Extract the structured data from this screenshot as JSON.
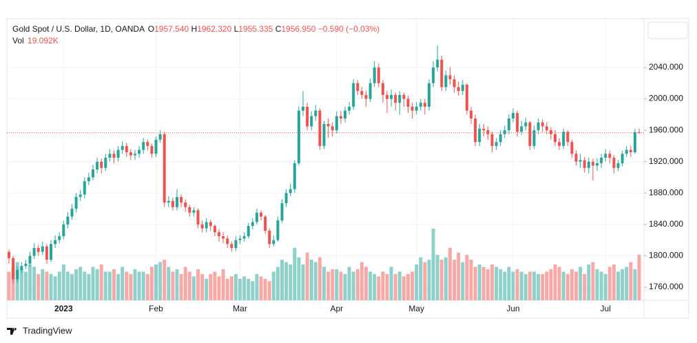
{
  "chart_data": {
    "type": "candlestick",
    "legend": {
      "symbol": "Gold Spot / U.S. Dollar, 1D, OANDA",
      "open_key": "O",
      "open": {
        "value": 1957.54,
        "label": "1957.540"
      },
      "high_key": "H",
      "high": {
        "value": 1962.32,
        "label": "1962.320"
      },
      "low_key": "L",
      "low": {
        "value": 1955.335,
        "label": "1955.335"
      },
      "close_key": "C",
      "close": {
        "value": 1956.95,
        "label": "1956.950"
      },
      "change": "−0.590 (−0.03%)",
      "volume_key": "Vol",
      "volume": {
        "value": 19.092,
        "label": "19.092K"
      }
    },
    "categories": [
      null,
      null,
      null,
      null,
      null,
      null,
      null,
      null,
      null,
      null,
      null,
      null,
      null,
      "2023",
      null,
      null,
      null,
      null,
      null,
      null,
      null,
      null,
      null,
      null,
      null,
      null,
      null,
      null,
      null,
      null,
      null,
      null,
      null,
      null,
      null,
      "Feb",
      null,
      null,
      null,
      null,
      null,
      null,
      null,
      null,
      null,
      null,
      null,
      null,
      null,
      null,
      null,
      null,
      null,
      null,
      null,
      "Mar",
      null,
      null,
      null,
      null,
      null,
      null,
      null,
      null,
      null,
      null,
      null,
      null,
      null,
      null,
      null,
      null,
      null,
      null,
      null,
      null,
      null,
      null,
      "Apr",
      null,
      null,
      null,
      null,
      null,
      null,
      null,
      null,
      null,
      null,
      null,
      null,
      null,
      null,
      null,
      null,
      null,
      null,
      "May",
      null,
      null,
      null,
      null,
      null,
      null,
      null,
      null,
      null,
      null,
      null,
      null,
      null,
      null,
      null,
      null,
      null,
      null,
      null,
      null,
      null,
      null,
      "Jun",
      null,
      null,
      null,
      null,
      null,
      null,
      null,
      null,
      null,
      null,
      null,
      null,
      null,
      null,
      null,
      null,
      null,
      null,
      null,
      null,
      null,
      "Jul",
      null,
      null,
      null,
      null,
      null,
      null,
      null,
      null
    ],
    "candles": [
      [
        1805,
        1808,
        1790,
        1797
      ],
      [
        1797,
        1800,
        1765,
        1770
      ],
      [
        1770,
        1786,
        1766,
        1782
      ],
      [
        1782,
        1792,
        1778,
        1787
      ],
      [
        1787,
        1795,
        1783,
        1790
      ],
      [
        1790,
        1805,
        1786,
        1800
      ],
      [
        1800,
        1816,
        1796,
        1810
      ],
      [
        1810,
        1814,
        1800,
        1805
      ],
      [
        1805,
        1818,
        1801,
        1812
      ],
      [
        1812,
        1815,
        1790,
        1795
      ],
      [
        1795,
        1820,
        1792,
        1815
      ],
      [
        1815,
        1826,
        1810,
        1820
      ],
      [
        1820,
        1830,
        1816,
        1825
      ],
      [
        1825,
        1845,
        1821,
        1840
      ],
      [
        1840,
        1856,
        1835,
        1850
      ],
      [
        1850,
        1866,
        1846,
        1860
      ],
      [
        1860,
        1880,
        1855,
        1875
      ],
      [
        1875,
        1884,
        1870,
        1878
      ],
      [
        1878,
        1900,
        1873,
        1895
      ],
      [
        1895,
        1906,
        1890,
        1900
      ],
      [
        1900,
        1916,
        1896,
        1910
      ],
      [
        1910,
        1925,
        1905,
        1920
      ],
      [
        1920,
        1924,
        1905,
        1912
      ],
      [
        1912,
        1930,
        1908,
        1925
      ],
      [
        1925,
        1936,
        1920,
        1930
      ],
      [
        1930,
        1934,
        1918,
        1925
      ],
      [
        1925,
        1940,
        1920,
        1935
      ],
      [
        1935,
        1946,
        1930,
        1940
      ],
      [
        1940,
        1944,
        1926,
        1932
      ],
      [
        1932,
        1936,
        1922,
        1928
      ],
      [
        1928,
        1935,
        1922,
        1930
      ],
      [
        1930,
        1940,
        1925,
        1935
      ],
      [
        1935,
        1950,
        1930,
        1945
      ],
      [
        1945,
        1948,
        1934,
        1940
      ],
      [
        1940,
        1943,
        1925,
        1930
      ],
      [
        1930,
        1952,
        1926,
        1948
      ],
      [
        1948,
        1960,
        1944,
        1955
      ],
      [
        1955,
        1958,
        1862,
        1868
      ],
      [
        1868,
        1876,
        1862,
        1870
      ],
      [
        1870,
        1874,
        1858,
        1862
      ],
      [
        1862,
        1885,
        1858,
        1875
      ],
      [
        1875,
        1878,
        1862,
        1868
      ],
      [
        1868,
        1872,
        1856,
        1862
      ],
      [
        1862,
        1865,
        1850,
        1855
      ],
      [
        1855,
        1862,
        1850,
        1858
      ],
      [
        1858,
        1860,
        1835,
        1840
      ],
      [
        1840,
        1845,
        1830,
        1835
      ],
      [
        1835,
        1848,
        1830,
        1843
      ],
      [
        1843,
        1846,
        1832,
        1838
      ],
      [
        1838,
        1840,
        1825,
        1830
      ],
      [
        1830,
        1834,
        1818,
        1825
      ],
      [
        1825,
        1830,
        1816,
        1822
      ],
      [
        1822,
        1826,
        1810,
        1815
      ],
      [
        1815,
        1818,
        1805,
        1810
      ],
      [
        1810,
        1825,
        1806,
        1820
      ],
      [
        1820,
        1826,
        1815,
        1822
      ],
      [
        1822,
        1830,
        1818,
        1825
      ],
      [
        1825,
        1842,
        1822,
        1838
      ],
      [
        1838,
        1848,
        1834,
        1843
      ],
      [
        1843,
        1860,
        1840,
        1855
      ],
      [
        1855,
        1858,
        1845,
        1850
      ],
      [
        1850,
        1852,
        1828,
        1832
      ],
      [
        1832,
        1835,
        1810,
        1815
      ],
      [
        1815,
        1826,
        1812,
        1820
      ],
      [
        1820,
        1850,
        1818,
        1845
      ],
      [
        1845,
        1872,
        1842,
        1867
      ],
      [
        1867,
        1885,
        1862,
        1880
      ],
      [
        1880,
        1892,
        1876,
        1885
      ],
      [
        1885,
        1922,
        1880,
        1918
      ],
      [
        1918,
        1990,
        1915,
        1985
      ],
      [
        1985,
        2010,
        1978,
        1990
      ],
      [
        1990,
        1995,
        1960,
        1965
      ],
      [
        1965,
        1984,
        1960,
        1978
      ],
      [
        1978,
        1992,
        1972,
        1985
      ],
      [
        1985,
        1988,
        1935,
        1940
      ],
      [
        1940,
        1972,
        1936,
        1968
      ],
      [
        1968,
        1975,
        1950,
        1965
      ],
      [
        1965,
        1970,
        1952,
        1960
      ],
      [
        1960,
        1984,
        1956,
        1978
      ],
      [
        1978,
        1985,
        1968,
        1975
      ],
      [
        1975,
        1990,
        1970,
        1985
      ],
      [
        1985,
        1996,
        1980,
        1990
      ],
      [
        1990,
        2025,
        1986,
        2020
      ],
      [
        2020,
        2024,
        2005,
        2010
      ],
      [
        2010,
        2015,
        2000,
        2005
      ],
      [
        2005,
        2010,
        1990,
        2000
      ],
      [
        2000,
        2026,
        1996,
        2020
      ],
      [
        2020,
        2048,
        2015,
        2040
      ],
      [
        2040,
        2045,
        2015,
        2020
      ],
      [
        2020,
        2024,
        1995,
        2005
      ],
      [
        2005,
        2010,
        1982,
        2000
      ],
      [
        2000,
        2012,
        1990,
        2005
      ],
      [
        2005,
        2008,
        1985,
        1995
      ],
      [
        1995,
        2010,
        1980,
        2005
      ],
      [
        2005,
        2008,
        1990,
        2000
      ],
      [
        2000,
        2004,
        1982,
        1990
      ],
      [
        1990,
        1995,
        1975,
        1985
      ],
      [
        1985,
        1996,
        1980,
        1990
      ],
      [
        1990,
        2000,
        1985,
        1995
      ],
      [
        1995,
        2000,
        1980,
        1990
      ],
      [
        1990,
        2025,
        1985,
        2020
      ],
      [
        2020,
        2048,
        2015,
        2040
      ],
      [
        2040,
        2068,
        2035,
        2050
      ],
      [
        2050,
        2055,
        2010,
        2015
      ],
      [
        2015,
        2036,
        2010,
        2030
      ],
      [
        2030,
        2040,
        2018,
        2025
      ],
      [
        2025,
        2030,
        2008,
        2015
      ],
      [
        2015,
        2022,
        2004,
        2010
      ],
      [
        2010,
        2024,
        2005,
        2018
      ],
      [
        2018,
        2020,
        1980,
        1985
      ],
      [
        1985,
        1990,
        1968,
        1975
      ],
      [
        1975,
        1980,
        1940,
        1945
      ],
      [
        1945,
        1968,
        1940,
        1962
      ],
      [
        1962,
        1968,
        1952,
        1960
      ],
      [
        1960,
        1965,
        1948,
        1955
      ],
      [
        1955,
        1958,
        1932,
        1940
      ],
      [
        1940,
        1950,
        1935,
        1945
      ],
      [
        1945,
        1960,
        1940,
        1955
      ],
      [
        1955,
        1966,
        1950,
        1960
      ],
      [
        1960,
        1980,
        1955,
        1975
      ],
      [
        1975,
        1988,
        1970,
        1982
      ],
      [
        1982,
        1985,
        1952,
        1958
      ],
      [
        1958,
        1972,
        1954,
        1965
      ],
      [
        1965,
        1976,
        1960,
        1970
      ],
      [
        1970,
        1972,
        1935,
        1940
      ],
      [
        1940,
        1966,
        1936,
        1960
      ],
      [
        1960,
        1975,
        1955,
        1970
      ],
      [
        1970,
        1974,
        1958,
        1965
      ],
      [
        1965,
        1970,
        1955,
        1960
      ],
      [
        1960,
        1964,
        1948,
        1955
      ],
      [
        1955,
        1960,
        1940,
        1945
      ],
      [
        1945,
        1950,
        1935,
        1940
      ],
      [
        1940,
        1962,
        1936,
        1958
      ],
      [
        1958,
        1960,
        1940,
        1945
      ],
      [
        1945,
        1948,
        1925,
        1930
      ],
      [
        1930,
        1934,
        1915,
        1920
      ],
      [
        1920,
        1930,
        1912,
        1922
      ],
      [
        1922,
        1926,
        1906,
        1912
      ],
      [
        1912,
        1925,
        1905,
        1920
      ],
      [
        1920,
        1924,
        1896,
        1915
      ],
      [
        1915,
        1924,
        1908,
        1918
      ],
      [
        1918,
        1930,
        1912,
        1925
      ],
      [
        1925,
        1936,
        1920,
        1930
      ],
      [
        1930,
        1934,
        1918,
        1925
      ],
      [
        1925,
        1928,
        1905,
        1912
      ],
      [
        1912,
        1922,
        1908,
        1918
      ],
      [
        1918,
        1934,
        1914,
        1930
      ],
      [
        1930,
        1940,
        1926,
        1935
      ],
      [
        1935,
        1940,
        1926,
        1932
      ],
      [
        1932,
        1962,
        1930,
        1957.54
      ],
      [
        1957.54,
        1962.32,
        1955.335,
        1956.95
      ]
    ],
    "volume": [
      12,
      14,
      16,
      13,
      12,
      15,
      14,
      11,
      13,
      12,
      11,
      10,
      12,
      15,
      12,
      11,
      13,
      14,
      12,
      11,
      14,
      13,
      15,
      12,
      12,
      13,
      11,
      14,
      12,
      11,
      13,
      12,
      12,
      11,
      14,
      15,
      16,
      17,
      14,
      12,
      13,
      11,
      14,
      12,
      10,
      13,
      11,
      9,
      11,
      12,
      10,
      13,
      9,
      10,
      11,
      9,
      10,
      9,
      8,
      11,
      10,
      9,
      8,
      12,
      14,
      17,
      16,
      15,
      22,
      18,
      15,
      20,
      17,
      16,
      18,
      14,
      12,
      13,
      13,
      12,
      11,
      14,
      12,
      13,
      16,
      14,
      12,
      11,
      10,
      12,
      11,
      14,
      11,
      12,
      10,
      11,
      12,
      15,
      18,
      16,
      17,
      30,
      19,
      17,
      18,
      22,
      17,
      20,
      16,
      19,
      17,
      14,
      15,
      14,
      13,
      15,
      14,
      13,
      12,
      14,
      12,
      13,
      12,
      11,
      12,
      12,
      11,
      11,
      12,
      13,
      15,
      14,
      12,
      11,
      13,
      12,
      14,
      11,
      15,
      16,
      13,
      12,
      11,
      14,
      15,
      12,
      13,
      14,
      16,
      13,
      19.092
    ],
    "up_color": "#26a69a",
    "down_color": "#ef5350",
    "volume_up_color": "#8fd1ca",
    "volume_down_color": "#f7a9a7",
    "ylim": [
      1743.3,
      2102.3
    ],
    "yticks": [
      {
        "value": 1760,
        "label": "1760.000"
      },
      {
        "value": 1800,
        "label": "1800.000"
      },
      {
        "value": 1840,
        "label": "1840.000"
      },
      {
        "value": 1880,
        "label": "1880.000"
      },
      {
        "value": 1920,
        "label": "1920.000"
      },
      {
        "value": 1960,
        "label": "1960.000"
      },
      {
        "value": 2000,
        "label": "2000.000"
      },
      {
        "value": 2040,
        "label": "2040.000"
      }
    ],
    "grid": true
  },
  "footer": {
    "brand": "TradingView"
  }
}
